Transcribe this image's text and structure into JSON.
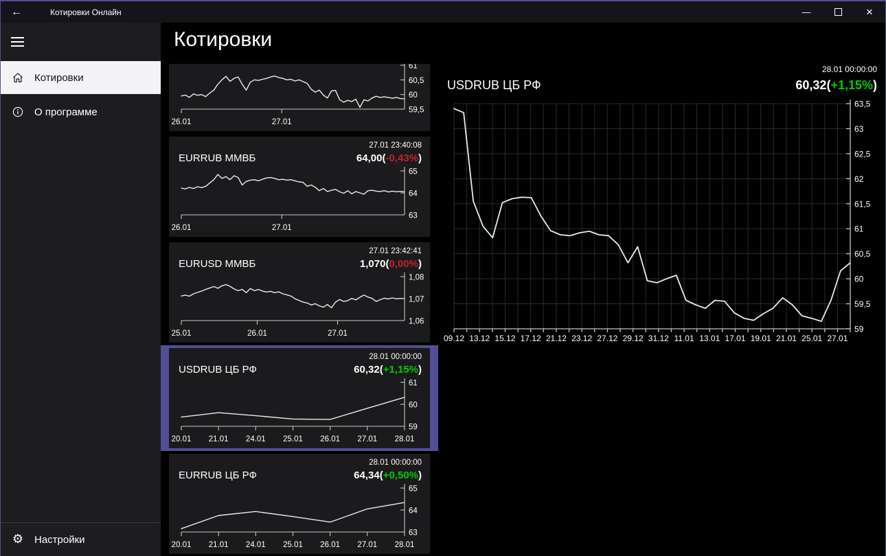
{
  "titlebar": {
    "title": "Котировки Онлайн",
    "back_glyph": "←",
    "minimize_glyph": "—",
    "close_glyph": "✕"
  },
  "page": {
    "title": "Котировки"
  },
  "sidebar": {
    "items": [
      {
        "label": "Котировки",
        "icon": "home-icon",
        "selected": true
      },
      {
        "label": "О программе",
        "icon": "info-icon",
        "selected": false
      }
    ],
    "footer": {
      "label": "Настройки",
      "icon": "gear-icon",
      "gear_glyph": "⚙"
    }
  },
  "colors": {
    "accent": "#514f96",
    "green": "#00cc00",
    "red": "#c5202e",
    "line": "#e2f0ea",
    "axis": "#c8c8c8",
    "grid": "#2b2b2b",
    "card_bg": "#1b1b1d",
    "sidebar_bg": "#1d1d20",
    "selected_item_bg": "#f4f3f6"
  },
  "quotes": [
    {
      "name": "",
      "timestamp": "",
      "value": "",
      "percent": "",
      "percent_color": "",
      "selected": false,
      "chart": {
        "type": "line",
        "ymin": 59.5,
        "ymax": 61,
        "y_ticks": [
          {
            "v": 61,
            "label": "61"
          },
          {
            "v": 60.5,
            "label": "60,5"
          },
          {
            "v": 60,
            "label": "60"
          },
          {
            "v": 59.5,
            "label": "59,5"
          }
        ],
        "x_labels": [
          {
            "f": 0,
            "label": "26.01"
          },
          {
            "f": 0.45,
            "label": "27.01"
          }
        ],
        "values": [
          59.95,
          59.98,
          59.9,
          60.02,
          59.97,
          60.0,
          59.93,
          60.05,
          60.15,
          60.35,
          60.5,
          60.62,
          60.45,
          60.55,
          60.6,
          60.35,
          60.15,
          60.42,
          60.5,
          60.48,
          60.52,
          60.55,
          60.6,
          60.63,
          60.58,
          60.55,
          60.5,
          60.52,
          60.46,
          60.5,
          60.44,
          60.38,
          60.18,
          60.08,
          60.15,
          59.98,
          59.88,
          60.12,
          60.14,
          59.82,
          59.74,
          59.8,
          59.76,
          59.84,
          59.56,
          59.82,
          59.78,
          59.88,
          59.94,
          59.9,
          59.92,
          59.9,
          59.87,
          59.9,
          59.86,
          59.85
        ]
      }
    },
    {
      "name": "EURRUB ММВБ",
      "timestamp": "27.01 23:40:08",
      "value": "64,00",
      "percent": "-0,43%",
      "percent_color": "red",
      "selected": false,
      "chart": {
        "type": "line",
        "ymin": 63,
        "ymax": 65,
        "y_ticks": [
          {
            "v": 65,
            "label": "65"
          },
          {
            "v": 64,
            "label": "64"
          },
          {
            "v": 63,
            "label": "63"
          }
        ],
        "x_labels": [
          {
            "f": 0,
            "label": "26.01"
          },
          {
            "f": 0.45,
            "label": "27.01"
          }
        ],
        "values": [
          64.22,
          64.18,
          64.25,
          64.2,
          64.28,
          64.24,
          64.3,
          64.45,
          64.6,
          64.84,
          64.66,
          64.74,
          64.6,
          64.78,
          64.7,
          64.36,
          64.52,
          64.58,
          64.6,
          64.55,
          64.62,
          64.68,
          64.7,
          64.66,
          64.6,
          64.62,
          64.58,
          64.6,
          64.55,
          64.5,
          64.48,
          64.3,
          64.36,
          64.26,
          64.1,
          64.2,
          64.06,
          64.12,
          64.16,
          64.05,
          63.98,
          64.1,
          63.96,
          64.06,
          64.0,
          63.94,
          64.1,
          64.12,
          64.08,
          64.06,
          64.1,
          64.04,
          64.08,
          64.05,
          64.07,
          64.05
        ]
      }
    },
    {
      "name": "EURUSD ММВБ",
      "timestamp": "27.01 23:42:41",
      "value": "1,070",
      "percent": "0,00%",
      "percent_color": "red",
      "selected": false,
      "chart": {
        "type": "line",
        "ymin": 1.06,
        "ymax": 1.08,
        "y_ticks": [
          {
            "v": 1.08,
            "label": "1,08"
          },
          {
            "v": 1.07,
            "label": "1,07"
          },
          {
            "v": 1.06,
            "label": "1,06"
          }
        ],
        "x_labels": [
          {
            "f": 0,
            "label": "25.01"
          },
          {
            "f": 0.34,
            "label": "26.01"
          },
          {
            "f": 0.7,
            "label": "27.01"
          }
        ],
        "values": [
          1.0712,
          1.0716,
          1.0711,
          1.0722,
          1.0728,
          1.0734,
          1.0742,
          1.0748,
          1.0755,
          1.0747,
          1.0758,
          1.0764,
          1.0756,
          1.0744,
          1.0736,
          1.0742,
          1.0727,
          1.0746,
          1.0736,
          1.0742,
          1.0734,
          1.073,
          1.0733,
          1.0727,
          1.0731,
          1.0722,
          1.0717,
          1.0712,
          1.0699,
          1.0692,
          1.0684,
          1.068,
          1.0671,
          1.0677,
          1.0667,
          1.0661,
          1.0673,
          1.0658,
          1.0684,
          1.0696,
          1.0687,
          1.0691,
          1.0701,
          1.0694,
          1.0706,
          1.0716,
          1.0707,
          1.0701,
          1.0687,
          1.0695,
          1.0702,
          1.0698,
          1.0703,
          1.0699,
          1.0701,
          1.07
        ]
      }
    },
    {
      "name": "USDRUB ЦБ РФ",
      "timestamp": "28.01 00:00:00",
      "value": "60,32",
      "percent": "+1,15%",
      "percent_color": "green",
      "selected": true,
      "chart": {
        "type": "line",
        "ymin": 59,
        "ymax": 61,
        "y_ticks": [
          {
            "v": 61,
            "label": "61"
          },
          {
            "v": 60,
            "label": "60"
          },
          {
            "v": 59,
            "label": "59"
          }
        ],
        "x_labels": [
          {
            "f": 0,
            "label": "20.01"
          },
          {
            "f": 0.1667,
            "label": "21.01"
          },
          {
            "f": 0.3333,
            "label": "24.01"
          },
          {
            "f": 0.5,
            "label": "25.01"
          },
          {
            "f": 0.6667,
            "label": "26.01"
          },
          {
            "f": 0.8333,
            "label": "27.01"
          },
          {
            "f": 1,
            "label": "28.01"
          }
        ],
        "values": [
          59.42,
          59.62,
          59.48,
          59.33,
          59.31,
          59.82,
          60.32
        ]
      }
    },
    {
      "name": "EURRUB ЦБ РФ",
      "timestamp": "28.01 00:00:00",
      "value": "64,34",
      "percent": "+0,50%",
      "percent_color": "green",
      "selected": false,
      "chart": {
        "type": "line",
        "ymin": 63,
        "ymax": 65,
        "y_ticks": [
          {
            "v": 65,
            "label": "65"
          },
          {
            "v": 64,
            "label": "64"
          },
          {
            "v": 63,
            "label": "63"
          }
        ],
        "x_labels": [
          {
            "f": 0,
            "label": "20.01"
          },
          {
            "f": 0.1667,
            "label": "21.01"
          },
          {
            "f": 0.3333,
            "label": "24.01"
          },
          {
            "f": 0.5,
            "label": "25.01"
          },
          {
            "f": 0.6667,
            "label": "26.01"
          },
          {
            "f": 0.8333,
            "label": "27.01"
          },
          {
            "f": 1,
            "label": "28.01"
          }
        ],
        "values": [
          63.15,
          63.75,
          63.93,
          63.7,
          63.45,
          64.05,
          64.34
        ]
      }
    }
  ],
  "detail": {
    "name": "USDRUB ЦБ РФ",
    "timestamp": "28.01 00:00:00",
    "value": "60,32",
    "percent": "+1,15%",
    "percent_color": "green",
    "chart": {
      "type": "line",
      "ymin": 59,
      "ymax": 63.5,
      "grid": true,
      "minor_ticks": 32,
      "y_ticks": [
        {
          "v": 63.5,
          "label": "63,5"
        },
        {
          "v": 63,
          "label": "63"
        },
        {
          "v": 62.5,
          "label": "62,5"
        },
        {
          "v": 62,
          "label": "62"
        },
        {
          "v": 61.5,
          "label": "61,5"
        },
        {
          "v": 61,
          "label": "61"
        },
        {
          "v": 60.5,
          "label": "60,5"
        },
        {
          "v": 60,
          "label": "60"
        },
        {
          "v": 59.5,
          "label": "59,5"
        },
        {
          "v": 59,
          "label": "59"
        }
      ],
      "x_labels": [
        "09.12",
        "13.12",
        "15.12",
        "17.12",
        "21.12",
        "23.12",
        "27.12",
        "29.12",
        "31.12",
        "11.01",
        "13.01",
        "17.01",
        "19.01",
        "21.01",
        "25.01",
        "27.01"
      ],
      "values": [
        63.4,
        63.32,
        61.55,
        61.05,
        60.82,
        61.52,
        61.6,
        61.63,
        61.62,
        61.25,
        60.96,
        60.88,
        60.86,
        60.92,
        60.95,
        60.88,
        60.86,
        60.68,
        60.32,
        60.64,
        59.96,
        59.92,
        60.0,
        60.07,
        59.57,
        59.48,
        59.41,
        59.57,
        59.55,
        59.32,
        59.21,
        59.17,
        59.3,
        59.41,
        59.62,
        59.48,
        59.26,
        59.21,
        59.15,
        59.57,
        60.16,
        60.32
      ]
    }
  }
}
